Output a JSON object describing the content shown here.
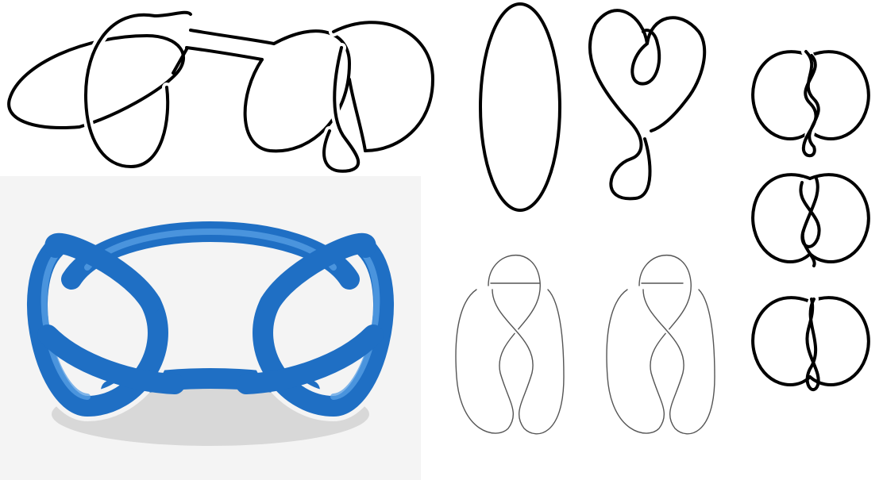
{
  "figures": [
    {
      "id": "granny-knot-diagram",
      "style": "black line drawing"
    },
    {
      "id": "knot-3d-tube",
      "style": "blue 3D tube rendering",
      "color": "#1f6fc4"
    },
    {
      "id": "unknot-diagrams",
      "style": "black line drawing"
    },
    {
      "id": "twisted-loop-diagrams",
      "style": "grey thin line drawing"
    },
    {
      "id": "knot-stack",
      "style": "black line drawing"
    }
  ],
  "colors": {
    "background": "#ffffff",
    "ink": "#000000",
    "tube": "#1f6fc4",
    "tube_backdrop": "#f4f4f4",
    "thin_ink": "#555555"
  }
}
